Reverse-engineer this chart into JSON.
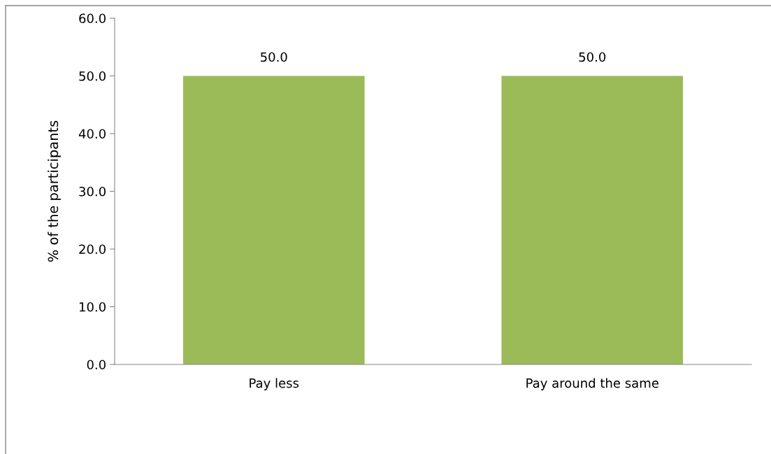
{
  "chart_data": {
    "type": "bar",
    "ylabel": "% of the participants",
    "categories": [
      "Pay less",
      "Pay around the same"
    ],
    "values": [
      50.0,
      50.0
    ],
    "color": "#9bbb59",
    "value_labels": [
      "50.0",
      "50.0"
    ],
    "ylim": [
      0,
      60
    ],
    "yticks": [
      {
        "value": 0,
        "label": "0.0"
      },
      {
        "value": 10,
        "label": "10.0"
      },
      {
        "value": 20,
        "label": "20.0"
      },
      {
        "value": 30,
        "label": "30.0"
      },
      {
        "value": 40,
        "label": "40.0"
      },
      {
        "value": 50,
        "label": "50.0"
      },
      {
        "value": 60,
        "label": "60.0"
      }
    ],
    "grid": false,
    "legend": false
  }
}
